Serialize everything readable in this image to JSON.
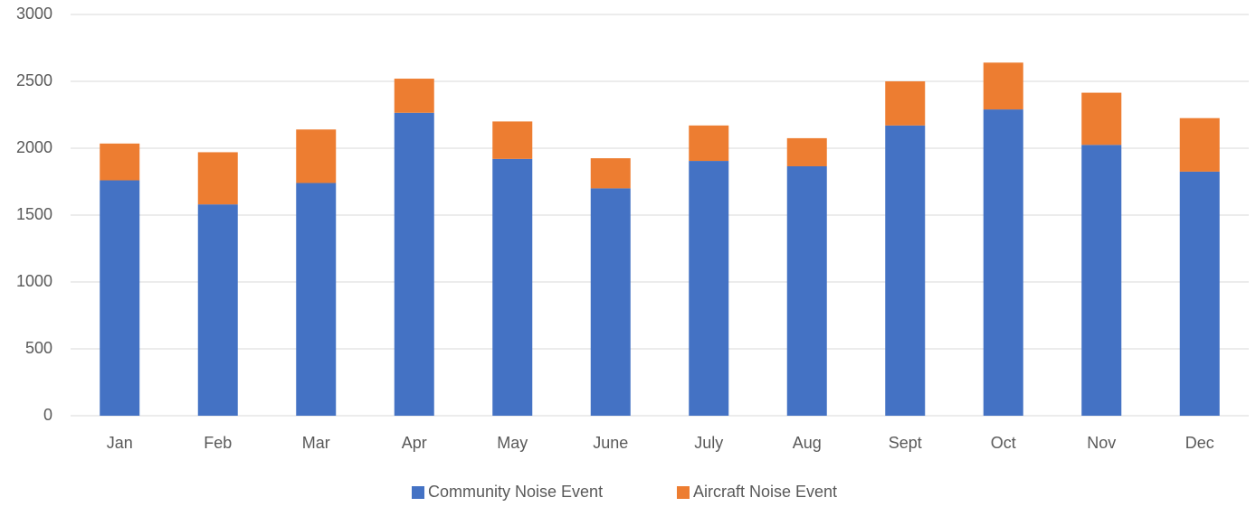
{
  "chart_data": {
    "type": "stacked_bar",
    "categories": [
      "Jan",
      "Feb",
      "Mar",
      "Apr",
      "May",
      "June",
      "July",
      "Aug",
      "Sept",
      "Oct",
      "Nov",
      "Dec"
    ],
    "series": [
      {
        "name": "Community Noise Event",
        "color": "#4472c4",
        "values": [
          1760,
          1580,
          1740,
          2265,
          1920,
          1700,
          1905,
          1865,
          2170,
          2290,
          2025,
          1825
        ]
      },
      {
        "name": "Aircraft Noise Event",
        "color": "#ed7d31",
        "values": [
          275,
          390,
          400,
          255,
          280,
          225,
          265,
          210,
          330,
          350,
          390,
          400
        ]
      }
    ],
    "ylim": [
      0,
      3000
    ],
    "yticks": [
      0,
      500,
      1000,
      1500,
      2000,
      2500,
      3000
    ],
    "grid": true,
    "legend": "bottom"
  }
}
